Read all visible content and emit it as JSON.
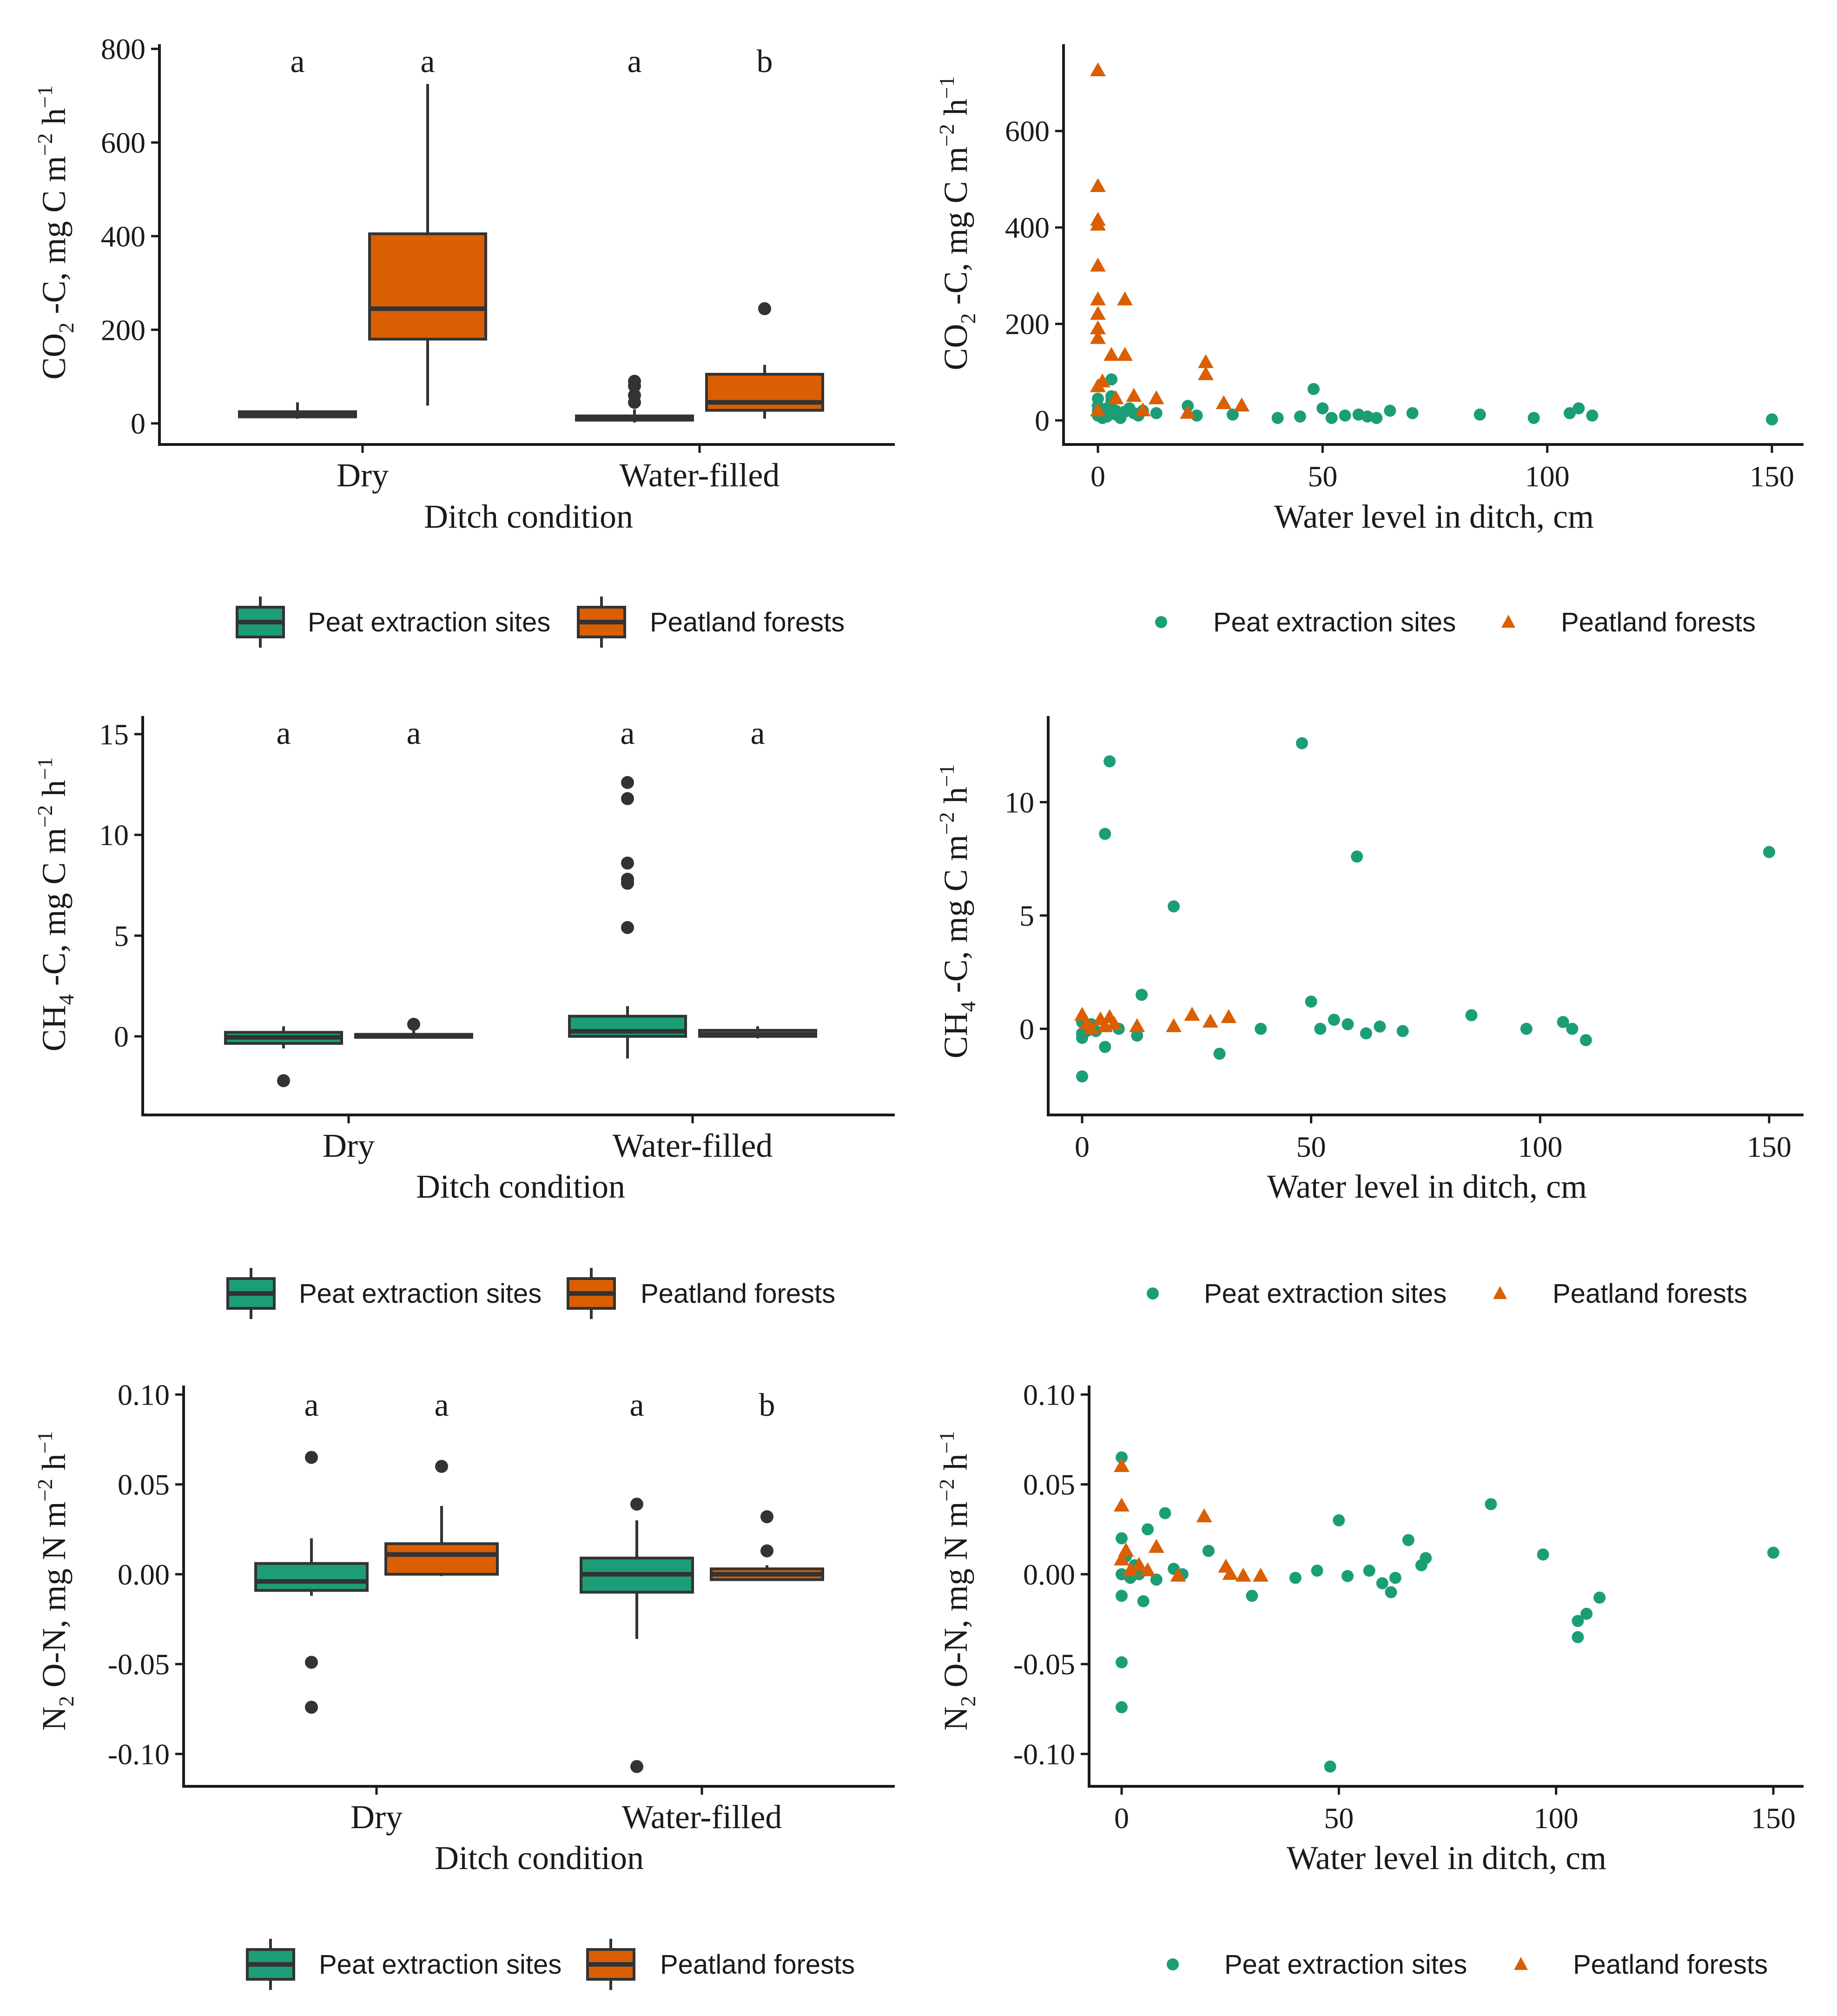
{
  "colors": {
    "peat_extraction": "#1b9e77",
    "peatland_forests": "#d95f02",
    "outline": "#333333"
  },
  "legend": {
    "series_a": "Peat extraction sites",
    "series_b": "Peatland forests"
  },
  "chart_data": [
    {
      "id": "co2_box",
      "type": "box",
      "title": "",
      "xlabel": "Ditch condition",
      "ylabel": "CO2-C, mg C m-2 h-1",
      "ylabel_parts": {
        "main": "CO",
        "sub": "2",
        "rest": " -C, mg C m",
        "sup1": "−2",
        "mid": " h",
        "sup2": "−1"
      },
      "categories": [
        "Dry",
        "Water-filled"
      ],
      "ylim": [
        -45,
        810
      ],
      "yticks": [
        0,
        200,
        400,
        600,
        800
      ],
      "ytick_labels": [
        "0",
        "200",
        "400",
        "600",
        "800"
      ],
      "significance_letters": [
        [
          "a",
          "a"
        ],
        [
          "a",
          "b"
        ]
      ],
      "groups": [
        {
          "category": "Dry",
          "series": "Peat extraction sites",
          "min": 10,
          "q1": 14,
          "median": 19,
          "q3": 25,
          "max": 45,
          "outliers": []
        },
        {
          "category": "Dry",
          "series": "Peatland forests",
          "min": 38,
          "q1": 180,
          "median": 245,
          "q3": 405,
          "max": 725,
          "outliers": []
        },
        {
          "category": "Water-filled",
          "series": "Peat extraction sites",
          "min": 2,
          "q1": 7,
          "median": 11,
          "q3": 16,
          "max": 30,
          "outliers": [
            45,
            60,
            80,
            90
          ]
        },
        {
          "category": "Water-filled",
          "series": "Peatland forests",
          "min": 10,
          "q1": 28,
          "median": 45,
          "q3": 105,
          "max": 125,
          "outliers": [
            245
          ]
        }
      ]
    },
    {
      "id": "co2_scatter",
      "type": "scatter",
      "title": "",
      "xlabel": "Water level in ditch, cm",
      "ylabel": "CO2-C, mg C m-2 h-1",
      "ylabel_parts": {
        "main": "CO",
        "sub": "2",
        "rest": " -C, mg C m",
        "sup1": "−2",
        "mid": " h",
        "sup2": "−1"
      },
      "xlim": [
        -8,
        158
      ],
      "ylim": [
        -50,
        780
      ],
      "xticks": [
        0,
        50,
        100,
        150
      ],
      "xtick_labels": [
        "0",
        "50",
        "100",
        "150"
      ],
      "yticks": [
        0,
        200,
        400,
        600
      ],
      "ytick_labels": [
        "0",
        "200",
        "400",
        "600"
      ],
      "series": [
        {
          "name": "Peat extraction sites",
          "marker": "circle",
          "x": [
            0,
            0,
            0,
            0,
            1,
            1,
            2,
            2,
            3,
            3,
            4,
            4,
            5,
            6,
            7,
            8,
            9,
            10,
            13,
            20,
            22,
            30,
            40,
            45,
            48,
            50,
            52,
            55,
            58,
            60,
            62,
            65,
            70,
            85,
            97,
            105,
            107,
            110,
            150,
            3
          ],
          "y": [
            10,
            20,
            30,
            45,
            5,
            15,
            8,
            25,
            40,
            85,
            20,
            12,
            5,
            18,
            25,
            15,
            10,
            20,
            15,
            30,
            10,
            12,
            5,
            8,
            65,
            25,
            5,
            10,
            12,
            8,
            5,
            20,
            15,
            12,
            5,
            15,
            25,
            10,
            2,
            50
          ]
        },
        {
          "name": "Peatland forests",
          "marker": "triangle",
          "x": [
            0,
            0,
            0,
            0,
            0,
            0,
            0,
            0,
            0,
            0,
            0,
            1,
            3,
            4,
            6,
            6,
            8,
            10,
            13,
            20,
            24,
            24,
            28,
            32
          ],
          "y": [
            725,
            485,
            415,
            405,
            320,
            250,
            220,
            190,
            170,
            70,
            20,
            80,
            135,
            45,
            250,
            135,
            50,
            20,
            45,
            15,
            120,
            95,
            35,
            30
          ]
        }
      ]
    },
    {
      "id": "ch4_box",
      "type": "box",
      "title": "",
      "xlabel": "Ditch condition",
      "ylabel": "CH4-C, mg C m-2 h-1",
      "ylabel_parts": {
        "main": "CH",
        "sub": "4",
        "rest": " -C, mg C m",
        "sup1": "−2",
        "mid": " h",
        "sup2": "−1"
      },
      "categories": [
        "Dry",
        "Water-filled"
      ],
      "ylim": [
        -3.9,
        15.9
      ],
      "yticks": [
        0,
        5,
        10,
        15
      ],
      "ytick_labels": [
        "0",
        "5",
        "10",
        "15"
      ],
      "significance_letters": [
        [
          "a",
          "a"
        ],
        [
          "a",
          "a"
        ]
      ],
      "groups": [
        {
          "category": "Dry",
          "series": "Peat extraction sites",
          "min": -0.6,
          "q1": -0.35,
          "median": -0.05,
          "q3": 0.2,
          "max": 0.5,
          "outliers": [
            -2.2
          ]
        },
        {
          "category": "Dry",
          "series": "Peatland forests",
          "min": -0.1,
          "q1": -0.05,
          "median": 0.02,
          "q3": 0.1,
          "max": 0.3,
          "outliers": [
            0.6
          ]
        },
        {
          "category": "Water-filled",
          "series": "Peat extraction sites",
          "min": -1.1,
          "q1": 0.0,
          "median": 0.25,
          "q3": 1.0,
          "max": 1.5,
          "outliers": [
            5.4,
            7.6,
            7.8,
            8.6,
            11.8,
            12.6
          ]
        },
        {
          "category": "Water-filled",
          "series": "Peatland forests",
          "min": -0.1,
          "q1": 0.0,
          "median": 0.1,
          "q3": 0.3,
          "max": 0.5,
          "outliers": []
        }
      ]
    },
    {
      "id": "ch4_scatter",
      "type": "scatter",
      "title": "",
      "xlabel": "Water level in ditch, cm",
      "ylabel": "CH4-C, mg C m-2 h-1",
      "ylabel_parts": {
        "main": "CH",
        "sub": "4",
        "rest": " -C, mg C m",
        "sup1": "−2",
        "mid": " h",
        "sup2": "−1"
      },
      "xlim": [
        -7.5,
        157.5
      ],
      "ylim": [
        -3.8,
        13.8
      ],
      "xticks": [
        0,
        50,
        100,
        150
      ],
      "xtick_labels": [
        "0",
        "50",
        "100",
        "150"
      ],
      "yticks": [
        0,
        5,
        10
      ],
      "ytick_labels": [
        "0",
        "5",
        "10"
      ],
      "series": [
        {
          "name": "Peat extraction sites",
          "marker": "circle",
          "x": [
            0,
            0,
            0,
            0,
            1,
            2,
            3,
            5,
            5,
            6,
            8,
            12,
            13,
            20,
            30,
            39,
            48,
            50,
            52,
            55,
            58,
            60,
            62,
            65,
            70,
            85,
            97,
            105,
            107,
            110,
            150
          ],
          "y": [
            -2.1,
            -0.4,
            -0.2,
            0.3,
            -0.1,
            0.2,
            -0.1,
            8.6,
            -0.8,
            11.8,
            0.0,
            -0.3,
            1.5,
            5.4,
            -1.1,
            0.0,
            12.6,
            1.2,
            0.0,
            0.4,
            0.2,
            7.6,
            -0.2,
            0.1,
            -0.1,
            0.6,
            0.0,
            0.3,
            0.0,
            -0.5,
            7.8
          ]
        },
        {
          "name": "Peatland forests",
          "marker": "triangle",
          "x": [
            0,
            1,
            2,
            4,
            5,
            6,
            7,
            12,
            20,
            24,
            28,
            32
          ],
          "y": [
            0.6,
            0.2,
            0.0,
            0.4,
            0.1,
            0.5,
            0.2,
            0.1,
            0.1,
            0.6,
            0.3,
            0.5
          ]
        }
      ]
    },
    {
      "id": "n2o_box",
      "type": "box",
      "title": "",
      "xlabel": "Ditch condition",
      "ylabel": "N2O-N, mg N m-2 h-1",
      "ylabel_parts": {
        "main": "N",
        "sub": "2",
        "rest": " O-N, mg N m",
        "sup1": "−2",
        "mid": " h",
        "sup2": "−1"
      },
      "categories": [
        "Dry",
        "Water-filled"
      ],
      "ylim": [
        -0.118,
        0.105
      ],
      "yticks": [
        -0.1,
        -0.05,
        0.0,
        0.05,
        0.1
      ],
      "ytick_labels": [
        "-0.10",
        "-0.05",
        "0.00",
        "0.05",
        "0.10"
      ],
      "significance_letters": [
        [
          "a",
          "a"
        ],
        [
          "a",
          "b"
        ]
      ],
      "groups": [
        {
          "category": "Dry",
          "series": "Peat extraction sites",
          "min": -0.012,
          "q1": -0.009,
          "median": -0.004,
          "q3": 0.006,
          "max": 0.02,
          "outliers": [
            0.065,
            -0.049,
            -0.074
          ]
        },
        {
          "category": "Dry",
          "series": "Peatland forests",
          "min": -0.001,
          "q1": 0.0,
          "median": 0.011,
          "q3": 0.017,
          "max": 0.038,
          "outliers": [
            0.06
          ]
        },
        {
          "category": "Water-filled",
          "series": "Peat extraction sites",
          "min": -0.036,
          "q1": -0.01,
          "median": 0.0,
          "q3": 0.009,
          "max": 0.03,
          "outliers": [
            0.039,
            -0.107
          ]
        },
        {
          "category": "Water-filled",
          "series": "Peatland forests",
          "min": -0.003,
          "q1": -0.003,
          "median": 0.0,
          "q3": 0.003,
          "max": 0.005,
          "outliers": [
            0.013,
            0.032
          ]
        }
      ]
    },
    {
      "id": "n2o_scatter",
      "type": "scatter",
      "title": "",
      "xlabel": "Water level in ditch, cm",
      "ylabel": "N2O-N, mg N m-2 h-1",
      "ylabel_parts": {
        "main": "N",
        "sub": "2",
        "rest": " O-N, mg N m",
        "sup1": "−2",
        "mid": " h",
        "sup2": "−1"
      },
      "xlim": [
        -7.5,
        157.5
      ],
      "ylim": [
        -0.118,
        0.105
      ],
      "xticks": [
        0,
        50,
        100,
        150
      ],
      "xtick_labels": [
        "0",
        "50",
        "100",
        "150"
      ],
      "yticks": [
        -0.1,
        -0.05,
        0.0,
        0.05,
        0.1
      ],
      "ytick_labels": [
        "-0.10",
        "-0.05",
        "0.00",
        "0.05",
        "0.10"
      ],
      "series": [
        {
          "name": "Peat extraction sites",
          "marker": "circle",
          "x": [
            0,
            0,
            0,
            0,
            0,
            0,
            1,
            2,
            3,
            4,
            5,
            6,
            8,
            10,
            12,
            14,
            20,
            30,
            40,
            45,
            48,
            50,
            52,
            57,
            60,
            62,
            63,
            66,
            69,
            70,
            85,
            97,
            105,
            105,
            107,
            110,
            150
          ],
          "y": [
            0.065,
            0.02,
            -0.012,
            -0.049,
            -0.074,
            0.0,
            0.01,
            -0.002,
            0.005,
            0.0,
            -0.015,
            0.025,
            -0.003,
            0.034,
            0.003,
            0.0,
            0.013,
            -0.012,
            -0.002,
            0.002,
            -0.107,
            0.03,
            -0.001,
            0.002,
            -0.005,
            -0.01,
            -0.002,
            0.019,
            0.005,
            0.009,
            0.039,
            0.011,
            -0.026,
            -0.035,
            -0.022,
            -0.013,
            0.012
          ]
        },
        {
          "name": "Peatland forests",
          "marker": "triangle",
          "x": [
            0,
            0,
            0,
            1,
            2,
            4,
            6,
            8,
            13,
            19,
            24,
            25,
            28,
            32
          ],
          "y": [
            0.06,
            0.038,
            0.008,
            0.013,
            0.002,
            0.005,
            0.002,
            0.015,
            -0.001,
            0.032,
            0.004,
            0.0,
            -0.001,
            -0.001
          ]
        }
      ]
    }
  ]
}
